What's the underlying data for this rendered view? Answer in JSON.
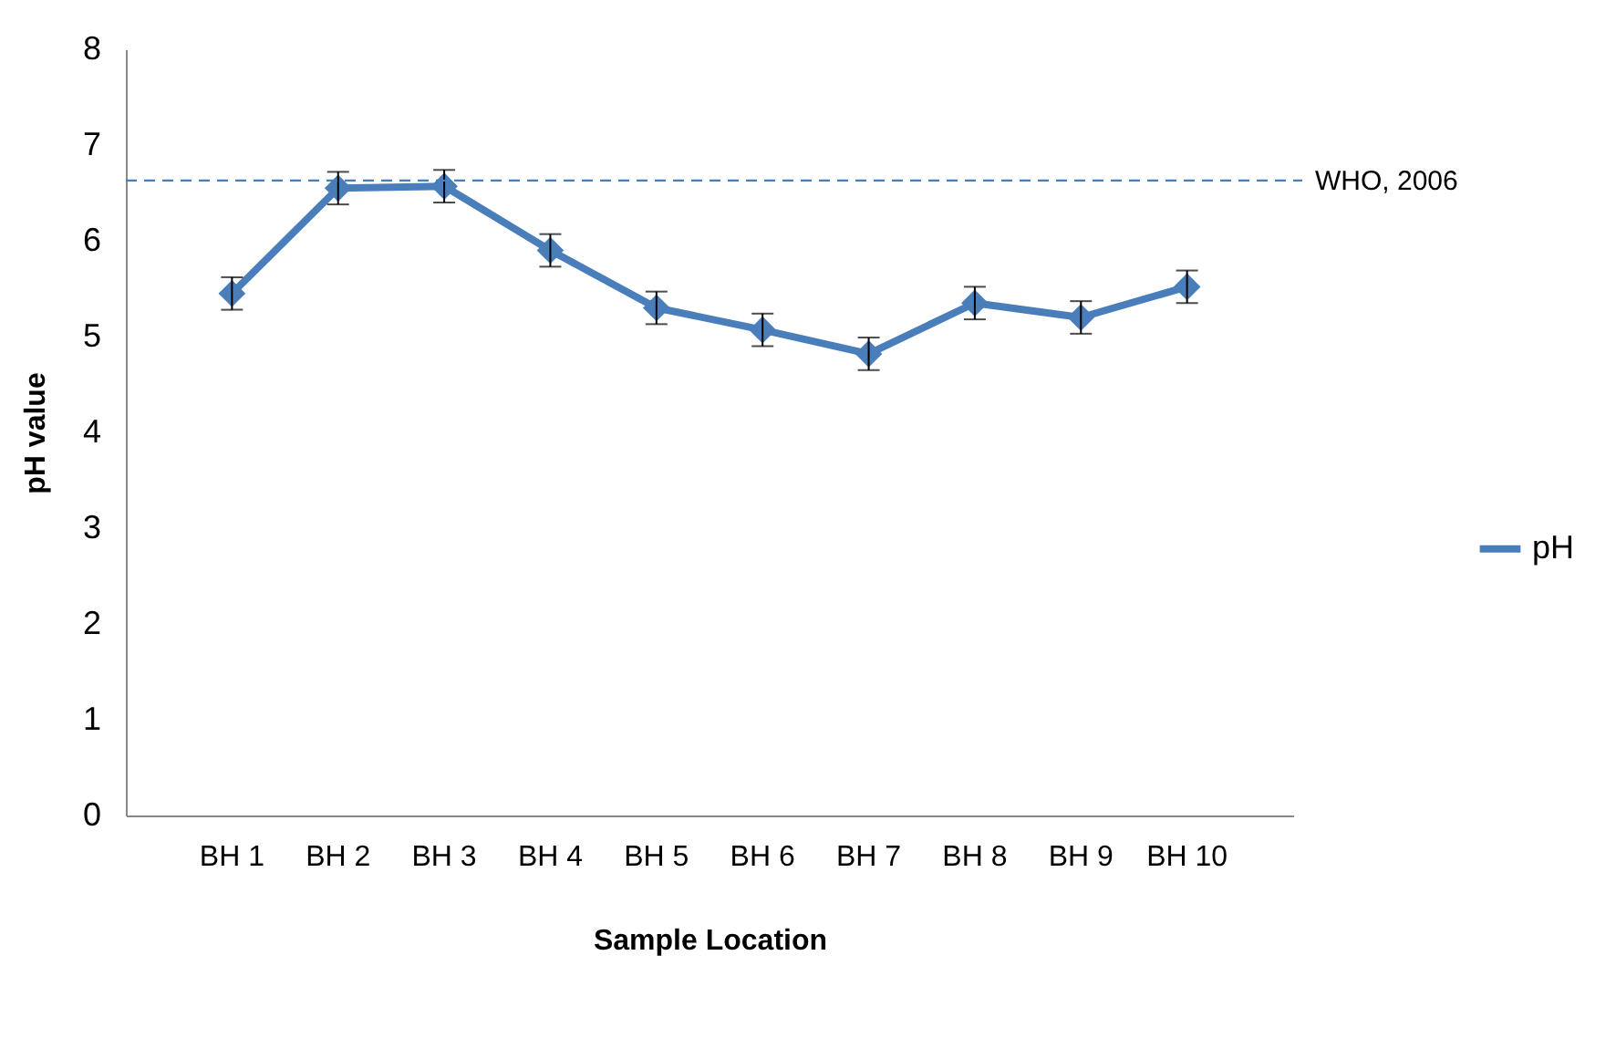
{
  "chart_data": {
    "type": "line",
    "xlabel": "Sample Location",
    "ylabel": "pH value",
    "categories": [
      "BH 1",
      "BH 2",
      "BH 3",
      "BH 4",
      "BH 5",
      "BH 6",
      "BH 7",
      "BH 8",
      "BH 9",
      "BH 10"
    ],
    "series": [
      {
        "name": "pH",
        "color": "#4a7ebb",
        "values": [
          5.45,
          6.55,
          6.57,
          5.9,
          5.3,
          5.07,
          4.82,
          5.35,
          5.2,
          5.52
        ],
        "errors": [
          0.17,
          0.17,
          0.17,
          0.17,
          0.17,
          0.17,
          0.17,
          0.17,
          0.17,
          0.17
        ]
      }
    ],
    "ylim": [
      0,
      8
    ],
    "yticks": [
      0,
      1,
      2,
      3,
      4,
      5,
      6,
      7,
      8
    ],
    "ref_lines": [
      {
        "axis": "y",
        "value": 6.63,
        "label": "WHO, 2006",
        "color": "#4a7ebb",
        "line_style": "dashed"
      }
    ],
    "marker": "diamond",
    "line_style": "solid",
    "legend": "right",
    "grid": false
  }
}
